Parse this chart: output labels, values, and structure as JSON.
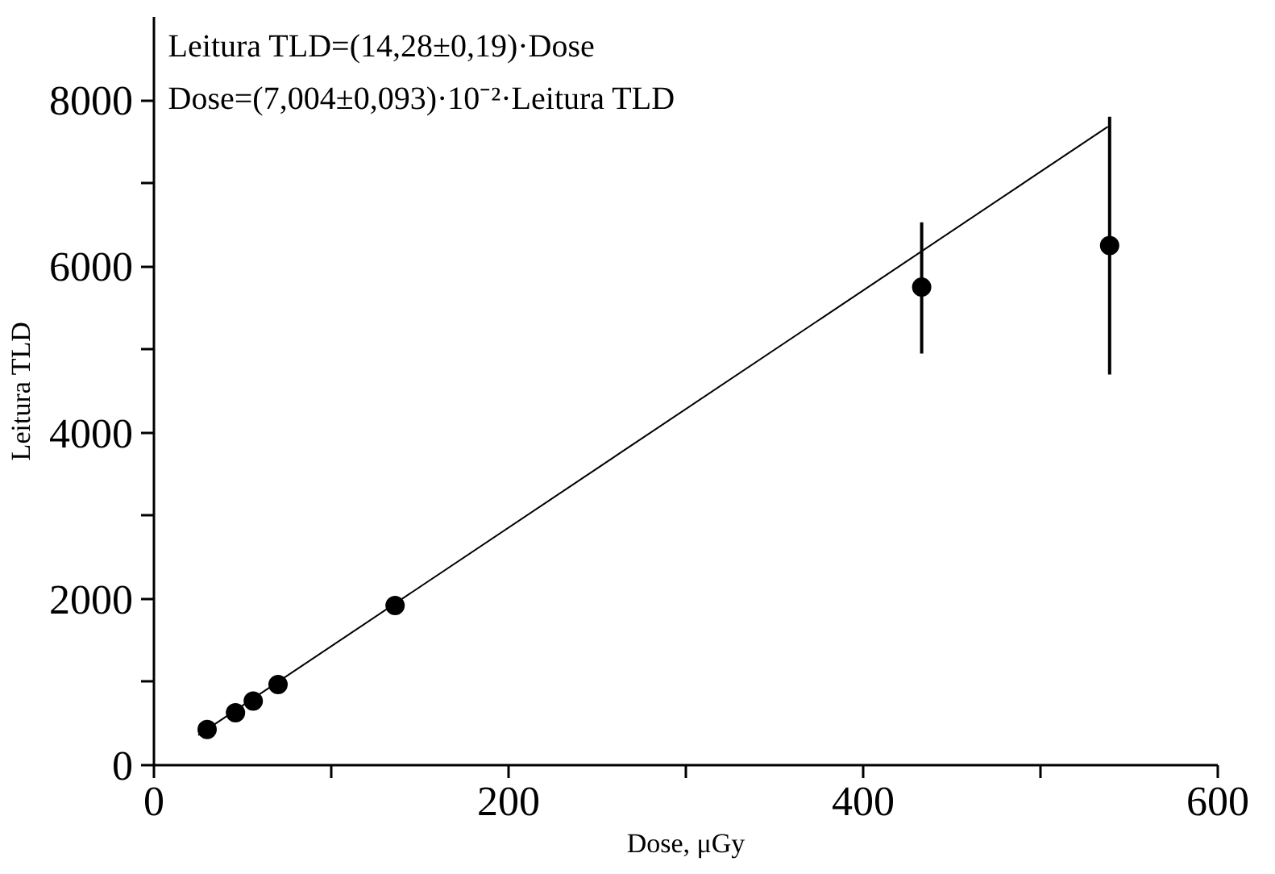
{
  "chart_data": {
    "type": "scatter",
    "xlabel": "Dose, μGy",
    "ylabel": "Leitura TLD",
    "xlim": [
      0,
      600
    ],
    "ylim": [
      0,
      9000
    ],
    "xticks": [
      0,
      {
        "value": 100,
        "label": null
      },
      200,
      {
        "value": 300,
        "label": null
      },
      400,
      {
        "value": 500,
        "label": null
      },
      600
    ],
    "yticks": [
      0,
      {
        "value": 1000,
        "label": null
      },
      2000,
      {
        "value": 3000,
        "label": null
      },
      4000,
      {
        "value": 5000,
        "label": null
      },
      6000,
      {
        "value": 7000,
        "label": null
      },
      8000
    ],
    "grid": false,
    "annotations": [
      "Leitura TLD=(14,28±0,19)·Dose",
      "Dose=(7,004±0,093)·10⁻²·Leitura TLD"
    ],
    "series": [
      {
        "marker": "circle",
        "color": "#000000",
        "x": [
          30,
          46,
          56,
          70,
          136,
          433,
          539
        ],
        "values": [
          430,
          630,
          770,
          970,
          1920,
          5750,
          6250
        ],
        "errors": [
          null,
          null,
          null,
          null,
          null,
          [
            4950,
            6530
          ],
          [
            4700,
            7800
          ]
        ]
      },
      {
        "type": "line",
        "color": "#000000",
        "x": [
          25,
          538
        ],
        "values": [
          360,
          7680
        ]
      }
    ]
  }
}
